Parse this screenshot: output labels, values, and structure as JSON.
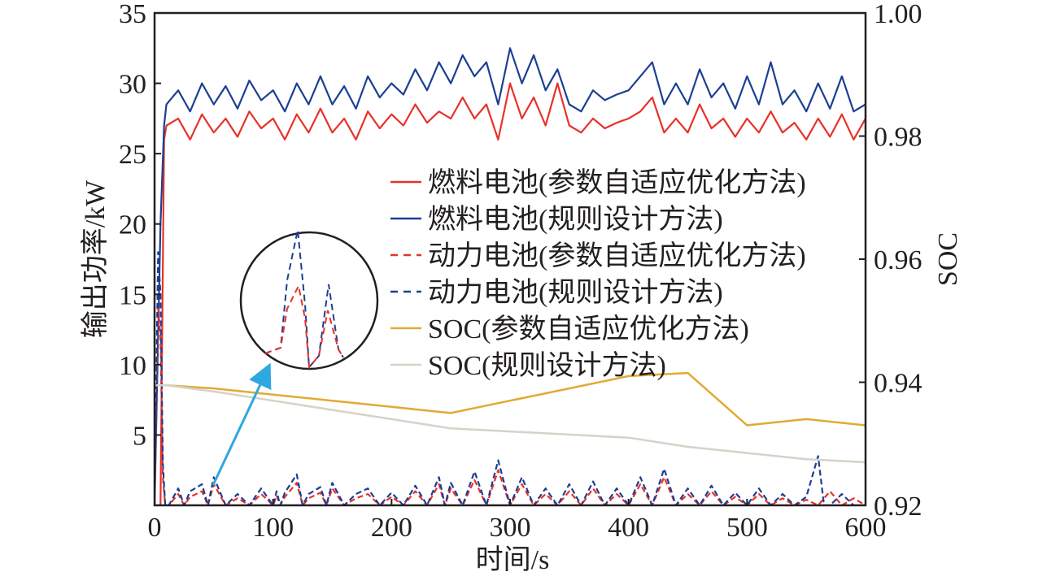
{
  "chart_data": {
    "type": "line",
    "xlabel": "时间/s",
    "ylabel": "输出功率/kW",
    "y2label": "SOC",
    "xlim": [
      0,
      600
    ],
    "ylim": [
      0,
      35
    ],
    "y2lim": [
      0.92,
      1.0
    ],
    "xticks": [
      "0",
      "100",
      "200",
      "300",
      "400",
      "500",
      "600"
    ],
    "yticks": [
      "5",
      "10",
      "15",
      "20",
      "25",
      "30",
      "35"
    ],
    "y2ticks": [
      "0.92",
      "0.94",
      "0.96",
      "0.98",
      "1.00"
    ],
    "grid": false,
    "legend_position": "center-right",
    "series": [
      {
        "name": "燃料电池(参数自适应优化方法)",
        "axis": "left",
        "style": "solid",
        "color": "#e8312a",
        "x": [
          0,
          5,
          8,
          10,
          20,
          30,
          40,
          50,
          60,
          70,
          80,
          90,
          100,
          110,
          120,
          130,
          140,
          150,
          160,
          170,
          180,
          190,
          200,
          210,
          220,
          230,
          240,
          250,
          260,
          270,
          280,
          290,
          300,
          310,
          320,
          330,
          340,
          350,
          360,
          370,
          380,
          390,
          400,
          410,
          420,
          430,
          440,
          450,
          460,
          470,
          480,
          490,
          500,
          510,
          520,
          530,
          540,
          550,
          560,
          570,
          580,
          590,
          600
        ],
        "values": [
          0,
          0,
          26,
          27.0,
          27.5,
          26.0,
          27.8,
          26.5,
          27.5,
          26.2,
          28.0,
          26.8,
          27.5,
          26.0,
          27.8,
          26.5,
          28.2,
          26.5,
          27.5,
          26.0,
          28.0,
          26.8,
          27.8,
          27.0,
          28.5,
          27.2,
          28.0,
          27.5,
          29.0,
          27.5,
          28.5,
          26.0,
          30.0,
          27.5,
          29.0,
          27.0,
          30.0,
          27.0,
          26.5,
          27.5,
          26.8,
          27.2,
          27.5,
          28.0,
          29.0,
          26.5,
          27.5,
          26.5,
          28.5,
          26.8,
          27.5,
          26.2,
          27.5,
          26.5,
          28.0,
          26.5,
          27.2,
          26.0,
          27.5,
          26.2,
          27.8,
          26.0,
          27.5
        ]
      },
      {
        "name": "燃料电池(规则设计方法)",
        "axis": "left",
        "style": "solid",
        "color": "#1c3f94",
        "x": [
          0,
          5,
          8,
          10,
          20,
          30,
          40,
          50,
          60,
          70,
          80,
          90,
          100,
          110,
          120,
          130,
          140,
          150,
          160,
          170,
          180,
          190,
          200,
          210,
          220,
          230,
          240,
          250,
          260,
          270,
          280,
          290,
          300,
          310,
          320,
          330,
          340,
          350,
          360,
          370,
          380,
          390,
          400,
          410,
          420,
          430,
          440,
          450,
          460,
          470,
          480,
          490,
          500,
          510,
          520,
          530,
          540,
          550,
          560,
          570,
          580,
          590,
          600
        ],
        "values": [
          0,
          20,
          27,
          28.5,
          29.5,
          28.0,
          30.0,
          28.5,
          29.8,
          28.2,
          30.2,
          28.8,
          29.5,
          28.0,
          30.0,
          28.5,
          30.5,
          28.5,
          29.8,
          28.2,
          30.5,
          29.0,
          30.0,
          29.2,
          31.0,
          29.5,
          31.5,
          30.0,
          32.0,
          30.5,
          31.5,
          28.5,
          32.5,
          30.0,
          32.0,
          29.5,
          31.0,
          28.5,
          28.0,
          29.5,
          28.8,
          29.2,
          29.5,
          30.5,
          31.5,
          28.5,
          30.0,
          28.5,
          31.0,
          29.0,
          30.0,
          28.2,
          30.5,
          28.5,
          31.5,
          28.5,
          29.5,
          28.0,
          30.0,
          28.2,
          30.5,
          28.0,
          28.5
        ]
      },
      {
        "name": "动力电池(参数自适应优化方法)",
        "axis": "left",
        "style": "dashed",
        "color": "#e8312a",
        "x": [
          0,
          3,
          5,
          7,
          9,
          12,
          20,
          25,
          30,
          40,
          45,
          50,
          60,
          70,
          80,
          90,
          100,
          103,
          106,
          110,
          120,
          125,
          130,
          140,
          145,
          150,
          160,
          170,
          180,
          190,
          200,
          210,
          220,
          230,
          240,
          245,
          250,
          260,
          270,
          280,
          290,
          300,
          310,
          320,
          330,
          340,
          350,
          360,
          370,
          380,
          390,
          400,
          410,
          420,
          430,
          440,
          450,
          460,
          470,
          480,
          490,
          500,
          510,
          520,
          530,
          540,
          550,
          560,
          570,
          580,
          590,
          600
        ],
        "values": [
          0,
          14,
          12,
          2,
          0,
          0,
          0.8,
          0,
          0.6,
          1.0,
          0,
          1.5,
          0,
          0.5,
          0,
          0.8,
          0,
          0.7,
          0,
          0.6,
          1.6,
          0,
          0.5,
          0.9,
          0,
          1.2,
          0,
          0.5,
          0.8,
          0,
          0.6,
          0,
          1.0,
          0,
          1.5,
          0,
          1.2,
          0,
          1.8,
          0,
          2.5,
          0,
          1.5,
          0,
          0.8,
          0,
          1.0,
          0,
          1.2,
          0,
          0.8,
          0,
          1.5,
          0,
          2.0,
          0,
          0.8,
          0,
          1.0,
          0,
          0.6,
          0,
          0.8,
          0,
          0.5,
          0,
          0.4,
          0,
          1.0,
          0,
          0.5,
          0
        ]
      },
      {
        "name": "动力电池(规则设计方法)",
        "axis": "left",
        "style": "dashed",
        "color": "#1c3f94",
        "x": [
          0,
          3,
          5,
          7,
          9,
          12,
          20,
          25,
          30,
          40,
          45,
          50,
          60,
          70,
          80,
          90,
          100,
          103,
          106,
          110,
          120,
          125,
          130,
          140,
          145,
          150,
          160,
          170,
          180,
          190,
          200,
          210,
          220,
          230,
          240,
          245,
          250,
          260,
          270,
          280,
          290,
          300,
          310,
          320,
          330,
          340,
          350,
          360,
          370,
          380,
          390,
          400,
          410,
          420,
          430,
          440,
          450,
          460,
          470,
          480,
          490,
          500,
          510,
          520,
          530,
          540,
          550,
          560,
          565,
          570,
          580,
          590,
          600
        ],
        "values": [
          0,
          18,
          15,
          3,
          0,
          0,
          1.2,
          0,
          1.0,
          1.5,
          0,
          2.0,
          0,
          0.8,
          0,
          1.2,
          0,
          1.0,
          0,
          0.9,
          2.2,
          0,
          0.8,
          1.3,
          0,
          1.6,
          0,
          0.8,
          1.2,
          0,
          0.9,
          0,
          1.4,
          0,
          2.0,
          0,
          1.6,
          0,
          2.4,
          0,
          3.2,
          0,
          2.0,
          0,
          1.2,
          0,
          1.5,
          0,
          1.7,
          0,
          1.2,
          0,
          2.0,
          0,
          2.6,
          0,
          1.2,
          0,
          1.4,
          0,
          0.9,
          0,
          1.2,
          0,
          0.8,
          0,
          0.6,
          3.5,
          0,
          0,
          0.8,
          0,
          0
        ]
      },
      {
        "name": "SOC(参数自适应优化方法)",
        "axis": "right",
        "style": "solid",
        "color": "#e3a934",
        "x": [
          0,
          10,
          50,
          100,
          150,
          200,
          250,
          300,
          350,
          400,
          450,
          500,
          550,
          600
        ],
        "values": [
          0.9395,
          0.9395,
          0.939,
          0.938,
          0.937,
          0.936,
          0.935,
          0.937,
          0.939,
          0.941,
          0.9415,
          0.933,
          0.934,
          0.933
        ]
      },
      {
        "name": "SOC(规则设计方法)",
        "axis": "right",
        "style": "solid",
        "color": "#d6d2c8",
        "x": [
          0,
          10,
          50,
          100,
          150,
          200,
          250,
          300,
          350,
          400,
          450,
          500,
          550,
          600
        ],
        "values": [
          0.9395,
          0.9395,
          0.9385,
          0.937,
          0.9355,
          0.934,
          0.9325,
          0.932,
          0.9315,
          0.931,
          0.9295,
          0.9285,
          0.9275,
          0.927
        ]
      }
    ],
    "annotation": "zoom-circle"
  }
}
